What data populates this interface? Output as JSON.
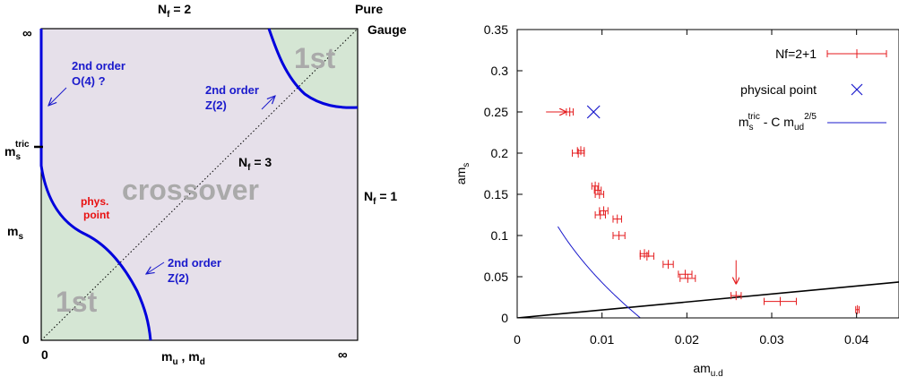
{
  "chart_data": [
    {
      "type": "diagram",
      "labels": {
        "top_nf2": "N",
        "top_nf2_sub": "f",
        "top_nf2_val": " = 2",
        "pure": "Pure",
        "gauge": "Gauge",
        "inf_top": "∞",
        "inf_right": "∞",
        "zero_left": "0",
        "zero_bottom": "0",
        "mstric_m": "m",
        "mstric_sub": "s",
        "mstric_sup": "tric",
        "ms_m": "m",
        "ms_sub": "s",
        "mumd_m1": "m",
        "mumd_sub1": "u",
        "mumd_sep": " , m",
        "mumd_sub2": "d",
        "nf3_n": "N",
        "nf3_sub": "f",
        "nf3_val": " = 3",
        "nf1_n": "N",
        "nf1_sub": "f",
        "nf1_val": " = 1",
        "crossover": "crossover",
        "first_top": "1st",
        "first_bottom": "1st",
        "second_o4_l1": "2nd order",
        "second_o4_l2": "O(4) ?",
        "second_z2_top_l1": "2nd order",
        "second_z2_top_l2": "Z(2)",
        "second_z2_bot_l1": "2nd order",
        "second_z2_bot_l2": "Z(2)",
        "phys_l1": "phys.",
        "phys_l2": "point"
      },
      "colors": {
        "crossover_region": "#e6e0ea",
        "first_order_region": "#d5e6d4",
        "boundary": "#0000dd",
        "annotation": "#1a1acc",
        "phys_text": "#e81010",
        "crossover_text": "#aaaaaa"
      }
    },
    {
      "type": "scatter",
      "xlabel": "am",
      "xlabel_sub": "u.d",
      "ylabel": "am",
      "ylabel_sub": "s",
      "xlim": [
        0,
        0.045
      ],
      "ylim": [
        0,
        0.35
      ],
      "xticks": [
        "0",
        "0.01",
        "0.02",
        "0.03",
        "0.04"
      ],
      "xtick_values": [
        0,
        0.01,
        0.02,
        0.03,
        0.04
      ],
      "yticks": [
        "0",
        "0.05",
        "0.1",
        "0.15",
        "0.2",
        "0.25",
        "0.3",
        "0.35"
      ],
      "ytick_values": [
        0,
        0.05,
        0.1,
        0.15,
        0.2,
        0.25,
        0.3,
        0.35
      ],
      "legend": {
        "position": "top-right",
        "entries": [
          {
            "label": "Nf=2+1",
            "color": "#e41a1c",
            "marker": "errorbar"
          },
          {
            "label": "physical point",
            "color": "#1a1acc",
            "marker": "x"
          },
          {
            "label_main": "m",
            "label_sub": "s",
            "label_sup": "tric",
            "label_rest": " - C m",
            "label_sub2": "ud",
            "label_sup2": "2/5",
            "color": "#1a1acc",
            "marker": "line"
          }
        ]
      },
      "series": [
        {
          "name": "Nf=2+1",
          "color": "#e41a1c",
          "points": [
            {
              "x": 0.0062,
              "y": 0.25,
              "xerr": 0.0004
            },
            {
              "x": 0.0072,
              "y": 0.2,
              "xerr": 0.0007
            },
            {
              "x": 0.0075,
              "y": 0.203,
              "xerr": 0.0004
            },
            {
              "x": 0.0092,
              "y": 0.16,
              "xerr": 0.0004
            },
            {
              "x": 0.0095,
              "y": 0.155,
              "xerr": 0.0004
            },
            {
              "x": 0.0097,
              "y": 0.15,
              "xerr": 0.0005
            },
            {
              "x": 0.0098,
              "y": 0.125,
              "xerr": 0.0006
            },
            {
              "x": 0.0102,
              "y": 0.13,
              "xerr": 0.0005
            },
            {
              "x": 0.0118,
              "y": 0.12,
              "xerr": 0.0005
            },
            {
              "x": 0.012,
              "y": 0.1,
              "xerr": 0.0007
            },
            {
              "x": 0.015,
              "y": 0.078,
              "xerr": 0.0005
            },
            {
              "x": 0.0153,
              "y": 0.075,
              "xerr": 0.0008
            },
            {
              "x": 0.0178,
              "y": 0.065,
              "xerr": 0.0006
            },
            {
              "x": 0.0198,
              "y": 0.053,
              "xerr": 0.0008
            },
            {
              "x": 0.0201,
              "y": 0.048,
              "xerr": 0.0009
            },
            {
              "x": 0.0258,
              "y": 0.027,
              "xerr": 0.0006
            },
            {
              "x": 0.031,
              "y": 0.02,
              "xerr": 0.0019
            },
            {
              "x": 0.0401,
              "y": 0.01,
              "xerr": 0.0002
            }
          ],
          "arrows": [
            {
              "type": "horizontal",
              "x_from": 0.0034,
              "x_to": 0.0057,
              "y": 0.25
            },
            {
              "type": "vertical",
              "x": 0.0258,
              "y_from": 0.07,
              "y_to": 0.042
            }
          ]
        },
        {
          "name": "physical point",
          "color": "#1a1acc",
          "points": [
            {
              "x": 0.009,
              "y": 0.25
            }
          ]
        },
        {
          "name": "fit",
          "color": "#1a1acc",
          "function": {
            "a": 0.31,
            "c": 1.685,
            "power": 0.4
          }
        },
        {
          "name": "black line",
          "color": "#000000",
          "line": {
            "x1": 0,
            "y1": 0,
            "x2": 0.045,
            "y2": 0.0435
          }
        }
      ]
    }
  ]
}
